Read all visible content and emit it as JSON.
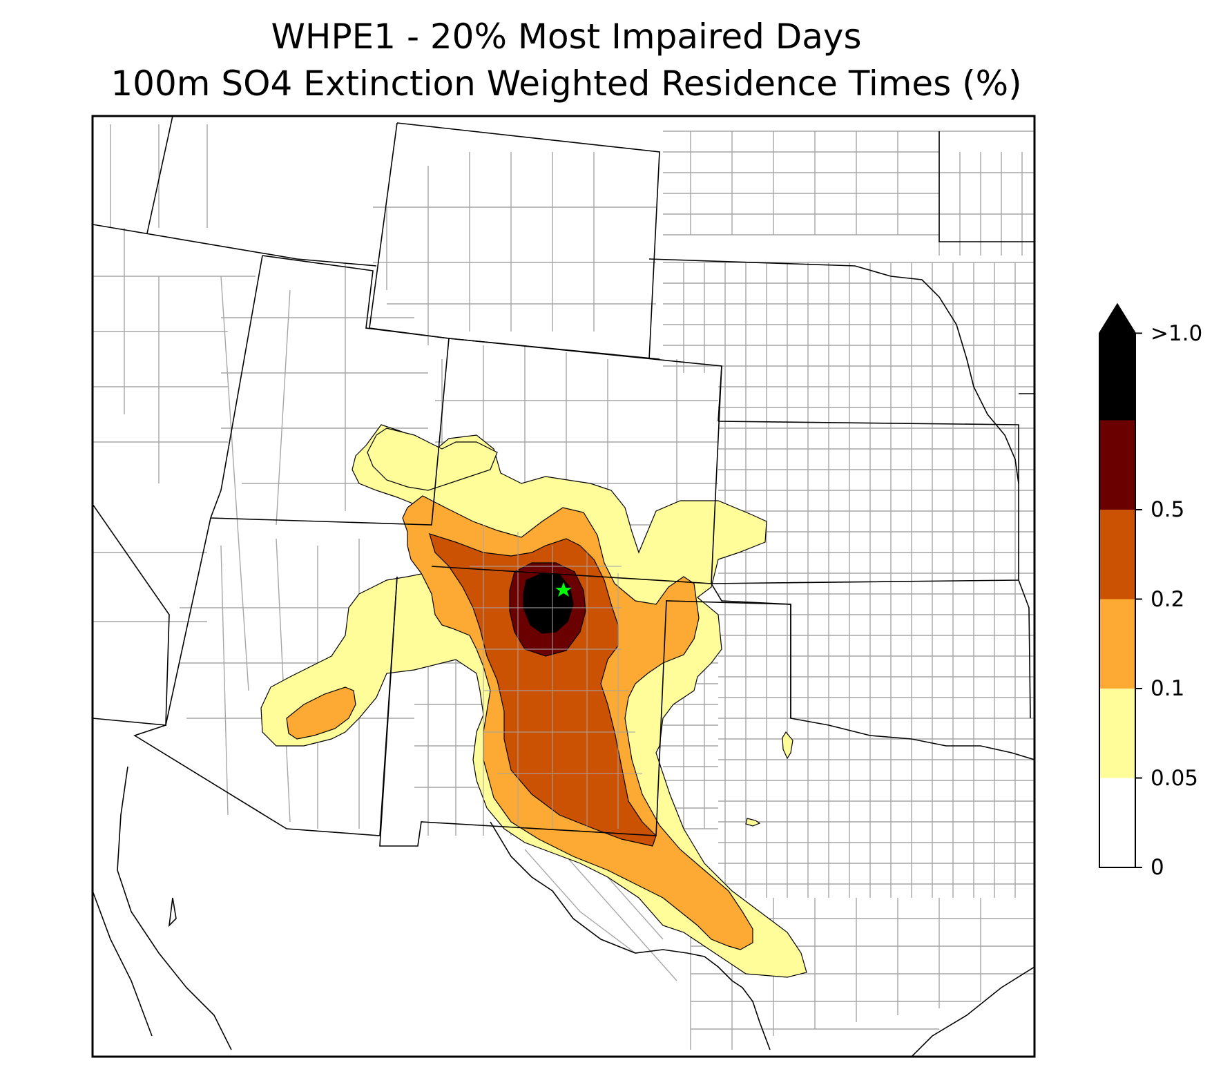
{
  "title_line1": "WHPE1 - 20% Most Impaired Days",
  "title_line2": "100m SO4 Extinction Weighted Residence Times (%)",
  "colors": {
    "level_005_01": "#fffd99",
    "level_01_02": "#fcaa33",
    "level_02_05": "#cc5203",
    "level_05_10": "#6b0000",
    "level_gt10": "#000000",
    "site_marker": "#00ff00",
    "state_border": "#000000",
    "county_border": "#a6a6a6"
  },
  "colorbar": {
    "extend": "max",
    "levels": [
      {
        "label": "0",
        "color": "#ffffff"
      },
      {
        "label": "0.05",
        "color": "#fffd99"
      },
      {
        "label": "0.1",
        "color": "#fcaa33"
      },
      {
        "label": "0.2",
        "color": "#cc5203"
      },
      {
        "label": "0.5",
        "color": "#6b0000"
      },
      {
        "label": ">1.0",
        "color": "#000000"
      }
    ]
  },
  "site": {
    "icon": "star-icon"
  }
}
